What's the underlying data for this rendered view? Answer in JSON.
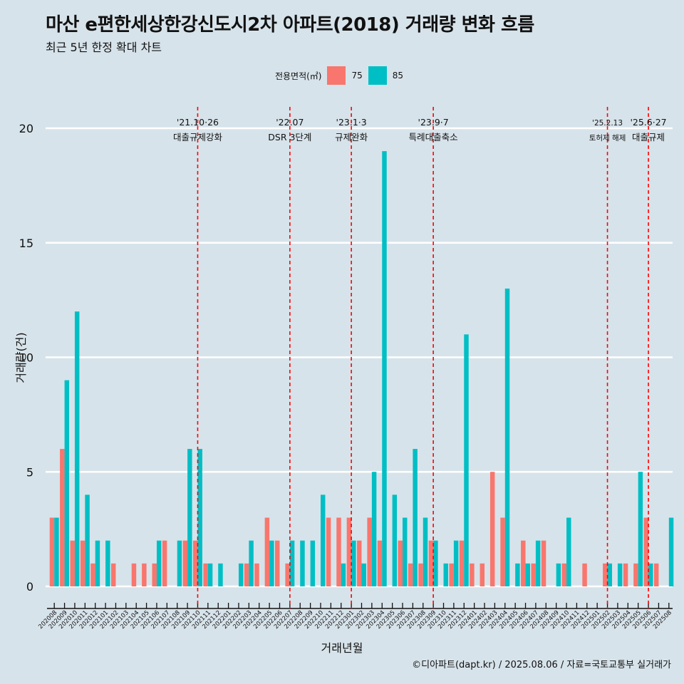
{
  "title": "마산 e편한세상한강신도시2차 아파트(2018) 거래량 변화 흐름",
  "subtitle": "최근 5년 한정 확대 차트",
  "caption": "©디아파트(dapt.kr) / 2025.08.06 / 자료=국토교통부 실거래가",
  "colors": {
    "s75": "#f8766d",
    "s85": "#00bfc4",
    "background": "#d7e3ea",
    "grid": "#ffffff",
    "event_line": "#ff0000"
  },
  "chart_data": {
    "type": "bar",
    "title": "마산 e편한세상한강신도시2차 아파트(2018) 거래량 변화 흐름",
    "subtitle": "최근 5년 한정 확대 차트",
    "xlabel": "거래년월",
    "ylabel": "거래량(건)",
    "ylim": [
      0,
      21
    ],
    "yticks": [
      0,
      5,
      10,
      15,
      20
    ],
    "legend": {
      "title": "전용면적(㎡)",
      "position": "top"
    },
    "grid": true,
    "categories": [
      "202008",
      "202009",
      "202010",
      "202011",
      "202012",
      "202101",
      "202102",
      "202103",
      "202104",
      "202105",
      "202106",
      "202107",
      "202108",
      "202109",
      "202110",
      "202111",
      "202112",
      "202201",
      "202202",
      "202203",
      "202204",
      "202205",
      "202206",
      "202207",
      "202208",
      "202209",
      "202210",
      "202211",
      "202212",
      "202301",
      "202302",
      "202303",
      "202304",
      "202305",
      "202306",
      "202307",
      "202308",
      "202309",
      "202310",
      "202311",
      "202312",
      "202401",
      "202402",
      "202403",
      "202404",
      "202405",
      "202406",
      "202407",
      "202408",
      "202409",
      "202410",
      "202411",
      "202412",
      "202501",
      "202502",
      "202503",
      "202504",
      "202505",
      "202506",
      "202507",
      "202508"
    ],
    "series": [
      {
        "name": "75",
        "color": "#f8766d",
        "values": [
          3,
          6,
          2,
          2,
          1,
          0,
          1,
          0,
          1,
          1,
          1,
          2,
          0,
          2,
          2,
          1,
          0,
          0,
          0,
          1,
          1,
          3,
          2,
          1,
          0,
          0,
          0,
          3,
          3,
          3,
          2,
          3,
          2,
          0,
          2,
          1,
          1,
          2,
          0,
          1,
          2,
          1,
          1,
          5,
          3,
          0,
          2,
          1,
          2,
          0,
          1,
          0,
          1,
          0,
          1,
          0,
          1,
          1,
          3,
          1,
          0
        ]
      },
      {
        "name": "85",
        "color": "#00bfc4",
        "values": [
          3,
          9,
          12,
          4,
          2,
          2,
          0,
          0,
          0,
          0,
          2,
          0,
          2,
          6,
          6,
          1,
          1,
          0,
          1,
          2,
          0,
          2,
          0,
          2,
          2,
          2,
          4,
          0,
          1,
          2,
          1,
          5,
          19,
          4,
          3,
          6,
          3,
          2,
          1,
          2,
          11,
          0,
          0,
          0,
          13,
          1,
          1,
          2,
          0,
          1,
          3,
          0,
          0,
          0,
          1,
          1,
          0,
          5,
          1,
          0,
          3
        ]
      }
    ],
    "annotations": [
      {
        "month": "202110",
        "date": "'21.10·26",
        "label": "대출규제강화"
      },
      {
        "month": "202207",
        "date": "'22.07",
        "label": "DSR 3단계"
      },
      {
        "month": "202301",
        "date": "'23.1·3",
        "label": "규제완화"
      },
      {
        "month": "202309",
        "date": "'23.9·7",
        "label": "특례대출축소"
      },
      {
        "month": "202502",
        "date": "'25.2.13",
        "label": "토허제 해제"
      },
      {
        "month": "202506",
        "date": "'25.6·27",
        "label": "대출규제"
      }
    ]
  }
}
